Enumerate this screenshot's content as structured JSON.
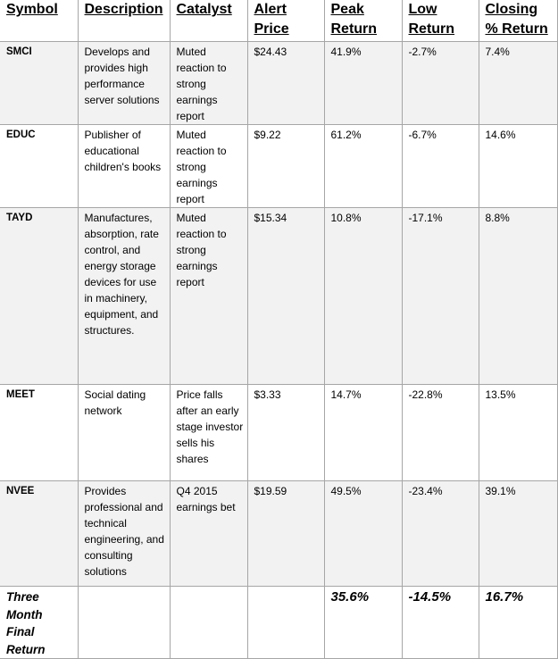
{
  "headers": {
    "symbol": "Symbol",
    "description": "Description",
    "catalyst": "Catalyst",
    "alert_price": "Alert Price",
    "peak_return": "Peak Return",
    "low_return": "Low Return",
    "closing_return": "Closing % Return"
  },
  "rows": [
    {
      "symbol": "SMCI",
      "description": "Develops and provides high performance server solutions",
      "catalyst": "Muted reaction to strong earnings report",
      "alert_price": "$24.43",
      "peak_return": "41.9%",
      "low_return": "-2.7%",
      "closing_return": "7.4%"
    },
    {
      "symbol": "EDUC",
      "description": "Publisher of educational children's books",
      "catalyst": "Muted reaction to strong earnings report",
      "alert_price": "$9.22",
      "peak_return": "61.2%",
      "low_return": "-6.7%",
      "closing_return": "14.6%"
    },
    {
      "symbol": "TAYD",
      "description": "Manufactures, absorption, rate control, and energy storage devices for use in machinery, equipment, and structures.",
      "catalyst": "Muted reaction to strong earnings report",
      "alert_price": "$15.34",
      "peak_return": "10.8%",
      "low_return": "-17.1%",
      "closing_return": "8.8%"
    },
    {
      "symbol": "MEET",
      "description": "Social dating network",
      "catalyst": "Price falls after an early stage investor sells his shares",
      "alert_price": "$3.33",
      "peak_return": "14.7%",
      "low_return": "-22.8%",
      "closing_return": "13.5%"
    },
    {
      "symbol": "NVEE",
      "description": "Provides professional and technical engineering, and consulting solutions",
      "catalyst": "Q4 2015 earnings bet",
      "alert_price": "$19.59",
      "peak_return": "49.5%",
      "low_return": "-23.4%",
      "closing_return": "39.1%"
    }
  ],
  "final": {
    "label": "Three Month Final Return",
    "peak_return": "35.6%",
    "low_return": "-14.5%",
    "closing_return": "16.7%"
  }
}
